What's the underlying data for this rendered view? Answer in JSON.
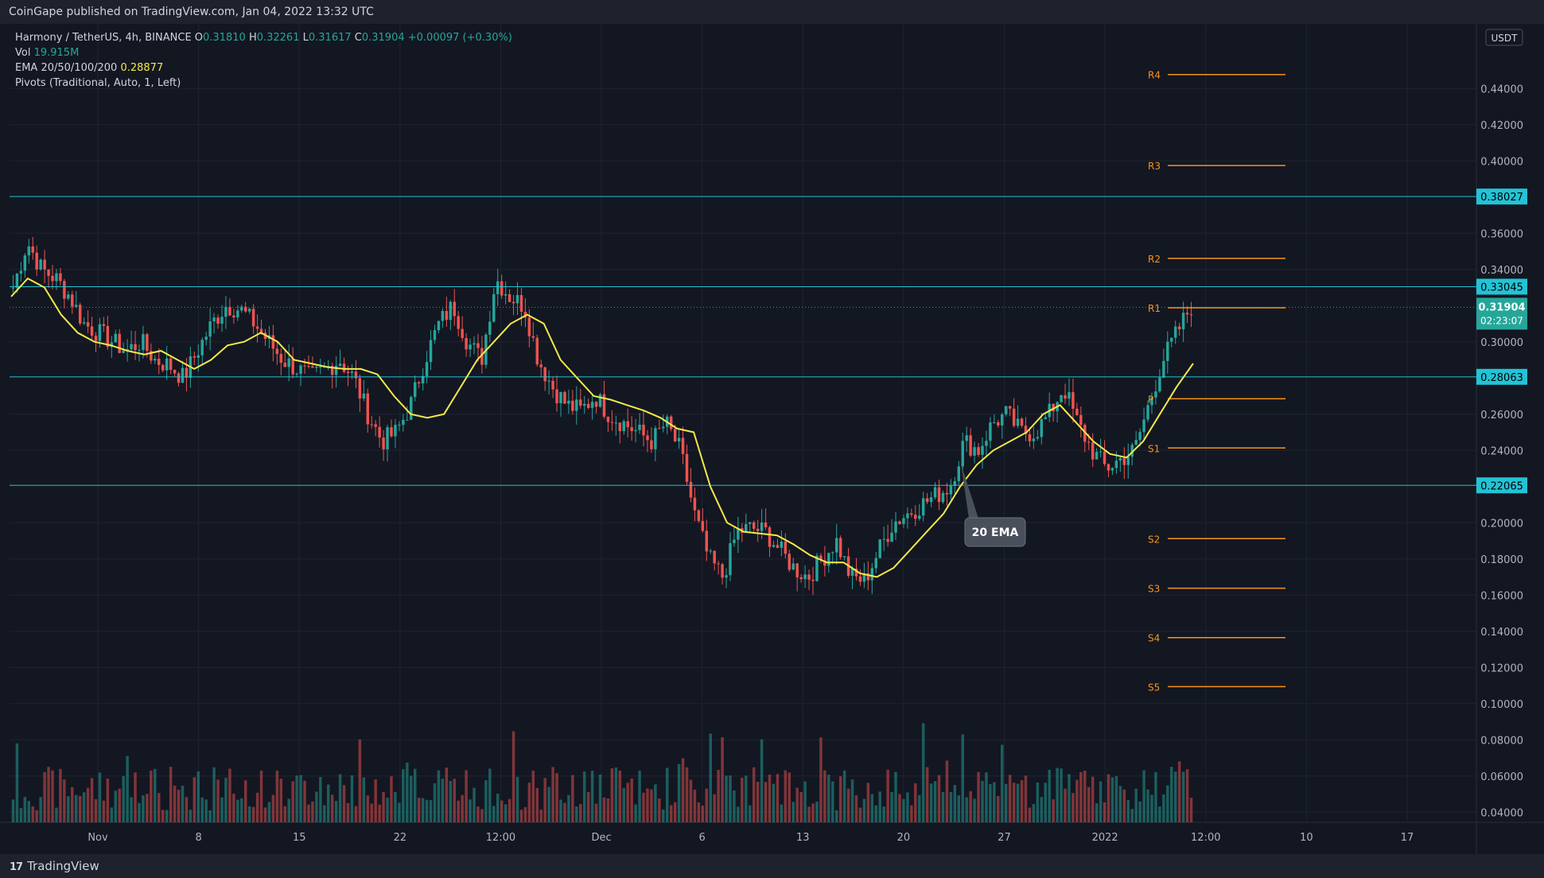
{
  "header": {
    "publisher_text": "CoinGape published on TradingView.com, Jan 04, 2022 13:32 UTC"
  },
  "legend": {
    "symbol_text": "Harmony / TetherUS, 4h, BINANCE",
    "o_label": "O",
    "o_value": "0.31810",
    "h_label": "H",
    "h_value": "0.32261",
    "l_label": "L",
    "l_value": "0.31617",
    "c_label": "C",
    "c_value": "0.31904",
    "change": "+0.00097 (+0.30%)",
    "vol_label": "Vol",
    "vol_value": "19.915M",
    "ema_label": "EMA 20/50/100/200",
    "ema_value": "0.28877",
    "pivots_label": "Pivots (Traditional, Auto, 1, Left)"
  },
  "footer": {
    "brand": "TradingView",
    "brand_mark": "17"
  },
  "colors": {
    "background": "#131722",
    "grid": "#1f2431",
    "up": "#26a69a",
    "down": "#ef5350",
    "ema": "#f5e94a",
    "pivot": "#f7931a",
    "level": "#22c3d6"
  },
  "chart_data": {
    "type": "candlestick",
    "currency_label": "USDT",
    "y_axis_ticks": [
      "0.44000",
      "0.42000",
      "0.40000",
      "0.36000",
      "0.34000",
      "0.30000",
      "0.26000",
      "0.24000",
      "0.20000",
      "0.18000",
      "0.16000",
      "0.14000",
      "0.12000",
      "0.10000",
      "0.08000",
      "0.06000",
      "0.04000"
    ],
    "y_range": [
      0.03,
      0.47
    ],
    "x_axis_ticks": [
      "Nov",
      "8",
      "15",
      "22",
      "12:00",
      "Dec",
      "6",
      "13",
      "20",
      "27",
      "2022",
      "12:00",
      "10",
      "17"
    ],
    "horizontal_levels": [
      {
        "label": "0.38027",
        "value": 0.38027
      },
      {
        "label": "0.33045",
        "value": 0.33045
      },
      {
        "label": "0.28063",
        "value": 0.28063
      },
      {
        "label": "0.22065",
        "value": 0.22065
      }
    ],
    "last_price": {
      "label": "0.31904",
      "countdown": "02:23:07",
      "value": 0.31904
    },
    "pivots": [
      {
        "label": "R4",
        "value": 0.4477
      },
      {
        "label": "R3",
        "value": 0.3974
      },
      {
        "label": "R2",
        "value": 0.3461
      },
      {
        "label": "R1",
        "value": 0.3188
      },
      {
        "label": "P",
        "value": 0.2685
      },
      {
        "label": "S1",
        "value": 0.2413
      },
      {
        "label": "S2",
        "value": 0.1912
      },
      {
        "label": "S3",
        "value": 0.1638
      },
      {
        "label": "S4",
        "value": 0.1365
      },
      {
        "label": "S5",
        "value": 0.1094
      }
    ],
    "price_path": [
      0.33,
      0.355,
      0.34,
      0.335,
      0.325,
      0.31,
      0.305,
      0.3,
      0.295,
      0.3,
      0.29,
      0.287,
      0.28,
      0.295,
      0.31,
      0.32,
      0.318,
      0.31,
      0.3,
      0.29,
      0.285,
      0.28,
      0.285,
      0.29,
      0.28,
      0.26,
      0.245,
      0.25,
      0.265,
      0.29,
      0.31,
      0.32,
      0.3,
      0.29,
      0.335,
      0.325,
      0.32,
      0.29,
      0.275,
      0.265,
      0.262,
      0.27,
      0.26,
      0.255,
      0.25,
      0.245,
      0.255,
      0.24,
      0.205,
      0.18,
      0.17,
      0.195,
      0.197,
      0.195,
      0.185,
      0.175,
      0.17,
      0.18,
      0.19,
      0.17,
      0.168,
      0.185,
      0.2,
      0.205,
      0.21,
      0.215,
      0.22,
      0.245,
      0.24,
      0.255,
      0.26,
      0.25,
      0.25,
      0.26,
      0.275,
      0.255,
      0.24,
      0.23,
      0.235,
      0.24,
      0.265,
      0.29,
      0.305,
      0.32
    ],
    "ema20_path": [
      0.325,
      0.335,
      0.33,
      0.315,
      0.305,
      0.3,
      0.298,
      0.295,
      0.293,
      0.295,
      0.29,
      0.285,
      0.29,
      0.298,
      0.3,
      0.305,
      0.3,
      0.29,
      0.288,
      0.286,
      0.285,
      0.285,
      0.282,
      0.27,
      0.26,
      0.258,
      0.26,
      0.275,
      0.29,
      0.3,
      0.31,
      0.315,
      0.31,
      0.29,
      0.28,
      0.27,
      0.268,
      0.265,
      0.262,
      0.258,
      0.252,
      0.25,
      0.22,
      0.2,
      0.195,
      0.194,
      0.193,
      0.188,
      0.182,
      0.178,
      0.178,
      0.172,
      0.17,
      0.175,
      0.185,
      0.195,
      0.205,
      0.22,
      0.232,
      0.24,
      0.245,
      0.25,
      0.26,
      0.265,
      0.255,
      0.245,
      0.238,
      0.236,
      0.245,
      0.26,
      0.275,
      0.288
    ],
    "annotation": "20 EMA"
  }
}
